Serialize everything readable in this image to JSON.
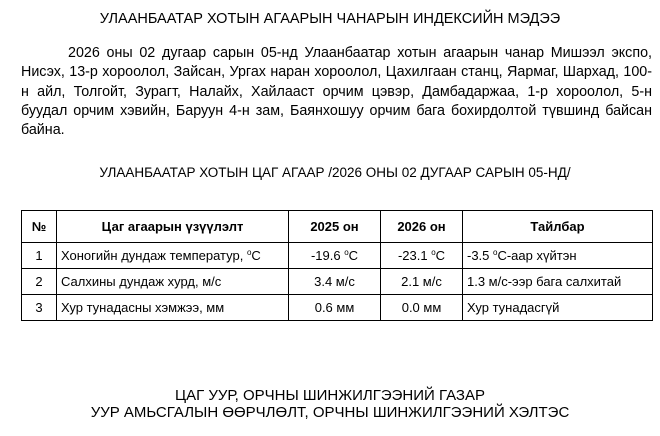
{
  "title": "УЛААНБААТАР ХОТЫН АГААРЫН ЧАНАРЫН ИНДЕКСИЙН МЭДЭЭ",
  "paragraph": "2026 оны 02 дугаар сарын 05-нд Улаанбаатар хотын агаарын чанар Мишээл экспо, Нисэх, 13-р хороолол, Зайсан, Ургах наран хороолол, Цахилгаан станц, Яармаг, Шархад, 100-н айл, Толгойт, Зурагт, Налайх, Хайлааст орчим цэвэр, Дамбадаржаа, 1-р хороолол, 5-н буудал орчим хэвийн, Баруун 4-н зам, Баянхошуу орчим бага бохирдолтой түвшинд байсан байна.",
  "weather_title": "УЛААНБААТАР ХОТЫН ЦАГ АГААР /2026 ОНЫ 02 ДУГААР САРЫН 05-НД/",
  "table": {
    "headers": [
      "№",
      "Цаг агаарын үзүүлэлт",
      "2025 он",
      "2026 он",
      "Тайлбар"
    ],
    "rows": [
      {
        "no": "1",
        "indicator": "Хоногийн дундаж температур, ",
        "indicator_unit_sup": "о",
        "indicator_unit": "C",
        "v2025": "-19.6 ",
        "v2025_sup": "о",
        "v2025_unit": "C",
        "v2026": "-23.1 ",
        "v2026_sup": "о",
        "v2026_unit": "C",
        "note": "-3.5 ",
        "note_sup": "о",
        "note_rest": "C-аар хүйтэн"
      },
      {
        "no": "2",
        "indicator": "Салхины дундаж хурд, м/с",
        "v2025": "3.4 м/с",
        "v2026": "2.1 м/с",
        "note": "1.3 м/с-ээр бага салхитай"
      },
      {
        "no": "3",
        "indicator": "Хур тунадасны хэмжээ, мм",
        "v2025": "0.6 мм",
        "v2026": "0.0 мм",
        "note": "Хур тунадасгүй"
      }
    ]
  },
  "footer": {
    "line1": "ЦАГ УУР, ОРЧНЫ ШИНЖИЛГЭЭНИЙ ГАЗАР",
    "line2": "УУР АМЬСГАЛЫН ӨӨРЧЛӨЛТ, ОРЧНЫ ШИНЖИЛГЭЭНИЙ ХЭЛТЭС"
  }
}
